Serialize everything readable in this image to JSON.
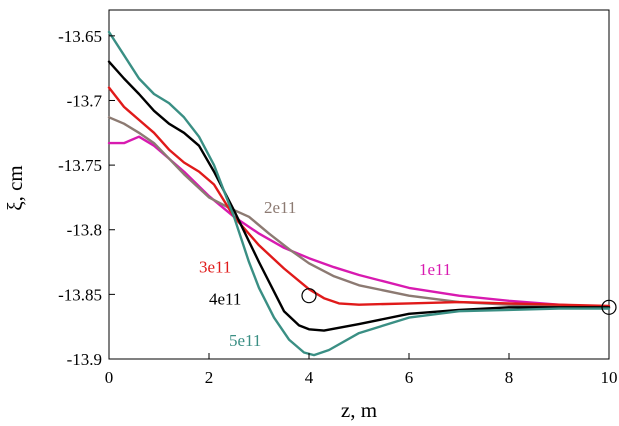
{
  "chart_data": {
    "type": "line",
    "xlabel": "z, m",
    "ylabel": "ξ, cm",
    "xlim": [
      0,
      10
    ],
    "ylim": [
      -13.9,
      -13.63
    ],
    "xticks": [
      {
        "value": 0,
        "label": "0"
      },
      {
        "value": 2,
        "label": "2"
      },
      {
        "value": 4,
        "label": "4"
      },
      {
        "value": 6,
        "label": "6"
      },
      {
        "value": 8,
        "label": "8"
      },
      {
        "value": 10,
        "label": "10"
      }
    ],
    "yticks": [
      {
        "value": -13.65,
        "label": "-13.65"
      },
      {
        "value": -13.7,
        "label": "-13.7"
      },
      {
        "value": -13.75,
        "label": "-13.75"
      },
      {
        "value": -13.8,
        "label": "-13.8"
      },
      {
        "value": -13.85,
        "label": "-13.85"
      },
      {
        "value": -13.9,
        "label": "-13.9"
      }
    ],
    "grid": false,
    "series": [
      {
        "name": "1e11",
        "color": "#d81ab0",
        "x": [
          0,
          0.3,
          0.6,
          0.9,
          1.2,
          1.5,
          2.0,
          2.5,
          3.0,
          3.5,
          4.0,
          4.5,
          5.0,
          6.0,
          7.0,
          8.0,
          9.0,
          10.0
        ],
        "y": [
          -13.733,
          -13.733,
          -13.728,
          -13.735,
          -13.745,
          -13.755,
          -13.774,
          -13.79,
          -13.803,
          -13.814,
          -13.822,
          -13.829,
          -13.835,
          -13.845,
          -13.851,
          -13.855,
          -13.858,
          -13.86
        ]
      },
      {
        "name": "2e11",
        "color": "#8c7a72",
        "x": [
          0,
          0.3,
          0.6,
          0.9,
          1.2,
          1.5,
          2.0,
          2.4,
          2.8,
          3.2,
          3.6,
          4.0,
          4.5,
          5.0,
          6.0,
          7.0,
          8.0,
          9.0,
          10.0
        ],
        "y": [
          -13.713,
          -13.718,
          -13.725,
          -13.733,
          -13.745,
          -13.757,
          -13.775,
          -13.783,
          -13.79,
          -13.803,
          -13.815,
          -13.826,
          -13.836,
          -13.843,
          -13.851,
          -13.856,
          -13.858,
          -13.859,
          -13.86
        ]
      },
      {
        "name": "3e11",
        "color": "#e01a1a",
        "x": [
          0,
          0.3,
          0.6,
          0.9,
          1.2,
          1.5,
          1.8,
          2.1,
          2.5,
          3.0,
          3.5,
          4.0,
          4.3,
          4.6,
          5.0,
          6.0,
          7.0,
          8.0,
          9.0,
          10.0
        ],
        "y": [
          -13.69,
          -13.705,
          -13.715,
          -13.725,
          -13.738,
          -13.748,
          -13.755,
          -13.765,
          -13.79,
          -13.812,
          -13.83,
          -13.846,
          -13.853,
          -13.857,
          -13.858,
          -13.857,
          -13.856,
          -13.857,
          -13.858,
          -13.859
        ]
      },
      {
        "name": "4e11",
        "color": "#000000",
        "x": [
          0,
          0.3,
          0.6,
          0.9,
          1.2,
          1.5,
          1.8,
          2.1,
          2.5,
          3.0,
          3.5,
          3.8,
          4.0,
          4.3,
          5.0,
          6.0,
          7.0,
          8.0,
          9.0,
          10.0
        ],
        "y": [
          -13.67,
          -13.683,
          -13.695,
          -13.708,
          -13.718,
          -13.725,
          -13.735,
          -13.755,
          -13.785,
          -13.825,
          -13.863,
          -13.874,
          -13.877,
          -13.878,
          -13.873,
          -13.865,
          -13.862,
          -13.86,
          -13.86,
          -13.86
        ]
      },
      {
        "name": "5e11",
        "color": "#3a8f84",
        "x": [
          0,
          0.3,
          0.6,
          0.9,
          1.2,
          1.5,
          1.8,
          2.1,
          2.5,
          2.8,
          3.0,
          3.3,
          3.6,
          3.9,
          4.1,
          4.4,
          5.0,
          6.0,
          7.0,
          8.0,
          9.0,
          10.0
        ],
        "y": [
          -13.647,
          -13.665,
          -13.683,
          -13.695,
          -13.702,
          -13.713,
          -13.728,
          -13.75,
          -13.79,
          -13.825,
          -13.845,
          -13.868,
          -13.885,
          -13.895,
          -13.897,
          -13.893,
          -13.88,
          -13.868,
          -13.863,
          -13.862,
          -13.861,
          -13.861
        ]
      }
    ],
    "annotations": [
      {
        "text": "1e11",
        "series": "1e11",
        "x": 6.2,
        "y": -13.835
      },
      {
        "text": "2e11",
        "series": "2e11",
        "x": 3.1,
        "y": -13.787
      },
      {
        "text": "3e11",
        "series": "3e11",
        "x": 1.8,
        "y": -13.833
      },
      {
        "text": "4e11",
        "series": "4e11",
        "x": 2.0,
        "y": -13.858
      },
      {
        "text": "5e11",
        "series": "5e11",
        "x": 2.4,
        "y": -13.89
      }
    ],
    "markers": [
      {
        "shape": "circle",
        "x": 4.0,
        "y": -13.851
      },
      {
        "shape": "circle",
        "x": 10.0,
        "y": -13.86
      }
    ]
  }
}
